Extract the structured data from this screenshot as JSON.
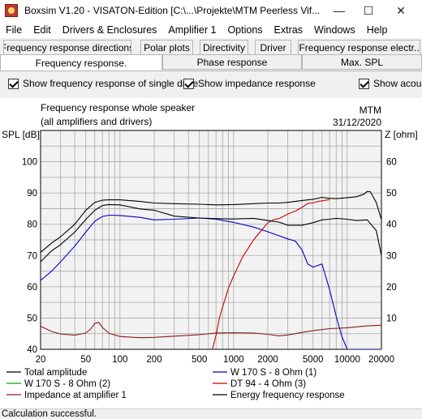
{
  "window": {
    "title": "Boxsim V1.20 - VISATON-Edition [C:\\...\\Projekte\\MTM Peerless Vif...",
    "minimize_glyph": "—",
    "maximize_glyph": "☐",
    "close_glyph": "✕"
  },
  "menu": [
    "File",
    "Edit",
    "Drivers & Enclosures",
    "Amplifier 1",
    "Options",
    "Extras",
    "Windows",
    "Help"
  ],
  "tabs_row1": [
    "Frequency response directions",
    "Polar plots",
    "Directivity",
    "Driver",
    "Frequency response electr.."
  ],
  "tabs_row2": [
    "Frequency response.",
    "Phase response",
    "Max. SPL"
  ],
  "options": {
    "single_driver": "Show frequency response of single drive",
    "impedance": "Show impedance response",
    "acoustic": "Show acous"
  },
  "chart_data": {
    "type": "line",
    "title": "Frequency response whole speaker",
    "subtitle": "(all amplifiers and drivers)",
    "project": "MTM",
    "date": "31/12/2020",
    "ylabel_left": "SPL [dB]",
    "ylabel_right": "Z [ohm]",
    "xscale": "log",
    "xlim": [
      20,
      20000
    ],
    "ylim_left": [
      40,
      110
    ],
    "ylim_right": [
      0,
      70
    ],
    "x_ticks": [
      20,
      50,
      100,
      200,
      500,
      1000,
      2000,
      5000,
      10000,
      20000
    ],
    "y_ticks_left": [
      40,
      50,
      60,
      70,
      80,
      90,
      100
    ],
    "y_ticks_right": [
      10,
      20,
      30,
      40,
      50,
      60
    ],
    "grid": true,
    "series": [
      {
        "name": "Total amplitude",
        "color": "#000000",
        "axis": "left",
        "x": [
          20,
          25,
          30,
          40,
          50,
          60,
          70,
          80,
          100,
          150,
          200,
          300,
          500,
          700,
          1000,
          1500,
          2000,
          2500,
          3000,
          4000,
          5000,
          6000,
          7000,
          8000,
          10000,
          12000,
          14000,
          15000,
          16000,
          18000,
          20000
        ],
        "y": [
          71,
          74,
          76,
          80,
          84.5,
          87,
          87.7,
          87.8,
          87.8,
          87.3,
          86.8,
          86.6,
          86.4,
          86.2,
          86.3,
          86.6,
          86.8,
          86.8,
          87.0,
          87.6,
          88.0,
          88.6,
          88.3,
          88.2,
          88.5,
          88.8,
          89.6,
          90.5,
          90.4,
          87.0,
          81.5
        ]
      },
      {
        "name": "W 170 S - 8 Ohm (1)",
        "color": "#0000cc",
        "axis": "left",
        "x": [
          20,
          25,
          30,
          40,
          50,
          60,
          70,
          80,
          100,
          150,
          200,
          300,
          500,
          700,
          1000,
          1500,
          2000,
          3000,
          3500,
          4000,
          4500,
          5000,
          5500,
          6000,
          7000,
          8000,
          9000,
          10000,
          12000,
          15000,
          20000
        ],
        "y": [
          62,
          65,
          68,
          73,
          77.5,
          81,
          82.5,
          82.9,
          82.8,
          82.2,
          81.4,
          81.6,
          82.0,
          81.6,
          80.6,
          79.1,
          77.6,
          75.3,
          74.6,
          71.8,
          67.3,
          66.3,
          66.8,
          67.3,
          59,
          50.5,
          44,
          40,
          40,
          40,
          40
        ]
      },
      {
        "name": "W 170 S - 8 Ohm (2)",
        "color": "#00aa00",
        "axis": "left",
        "x": [],
        "y": []
      },
      {
        "name": "DT 94 - 4 Ohm (3)",
        "color": "#cc0000",
        "axis": "left",
        "x": [
          650,
          700,
          750,
          800,
          900,
          1000,
          1200,
          1500,
          1800,
          2000,
          2300,
          2500,
          3000,
          3500,
          4000,
          4500,
          5000,
          5500,
          6000,
          7000
        ],
        "y": [
          40,
          44.5,
          50,
          53.5,
          59.5,
          63.5,
          69.5,
          75,
          78.5,
          80.5,
          81.6,
          81.8,
          83.3,
          84.2,
          85.4,
          86.7,
          86.8,
          87.3,
          87.5,
          87.9
        ]
      },
      {
        "name": "Impedance at amplifier 1",
        "color": "#8b1a1a",
        "axis": "right",
        "x": [
          20,
          25,
          30,
          40,
          50,
          55,
          60,
          65,
          70,
          80,
          100,
          150,
          200,
          300,
          500,
          700,
          1000,
          1500,
          2000,
          2500,
          3000,
          4000,
          5000,
          7000,
          10000,
          15000,
          20000
        ],
        "y": [
          7.4,
          5.7,
          4.9,
          4.5,
          5.2,
          6.4,
          8.3,
          8.6,
          7.0,
          5.1,
          4.1,
          3.7,
          3.8,
          4.2,
          4.7,
          5.2,
          5.3,
          5.2,
          4.8,
          4.3,
          4.6,
          5.4,
          6.0,
          6.6,
          6.9,
          7.5,
          7.7
        ]
      },
      {
        "name": "Energy frequency response",
        "color": "#000000",
        "axis": "left",
        "x": [
          20,
          25,
          30,
          40,
          50,
          60,
          70,
          80,
          100,
          150,
          200,
          300,
          500,
          700,
          1000,
          1500,
          2000,
          2500,
          3000,
          4000,
          5000,
          6000,
          7000,
          8000,
          10000,
          12000,
          15000,
          18000,
          20000
        ],
        "y": [
          68,
          71.5,
          73.5,
          77.5,
          81.5,
          84.5,
          86.0,
          86.3,
          86.2,
          84.9,
          84.5,
          82.6,
          82.0,
          81.8,
          81.7,
          81.9,
          81.2,
          80.7,
          79.7,
          79.7,
          80.5,
          81.4,
          81.6,
          81.9,
          81.6,
          81.2,
          81.4,
          78.0,
          70.0
        ]
      }
    ]
  },
  "legend": [
    {
      "label": "Total amplitude",
      "color": "#000000"
    },
    {
      "label": "W 170 S - 8 Ohm (1)",
      "color": "#0000cc"
    },
    {
      "label": "W 170 S - 8 Ohm (2)",
      "color": "#00aa00"
    },
    {
      "label": "DT 94 - 4 Ohm (3)",
      "color": "#cc0000"
    },
    {
      "label": "Impedance at amplifier 1",
      "color": "#8b1a1a"
    },
    {
      "label": "Energy frequency response",
      "color": "#000000"
    }
  ],
  "status": "Calculation successful."
}
